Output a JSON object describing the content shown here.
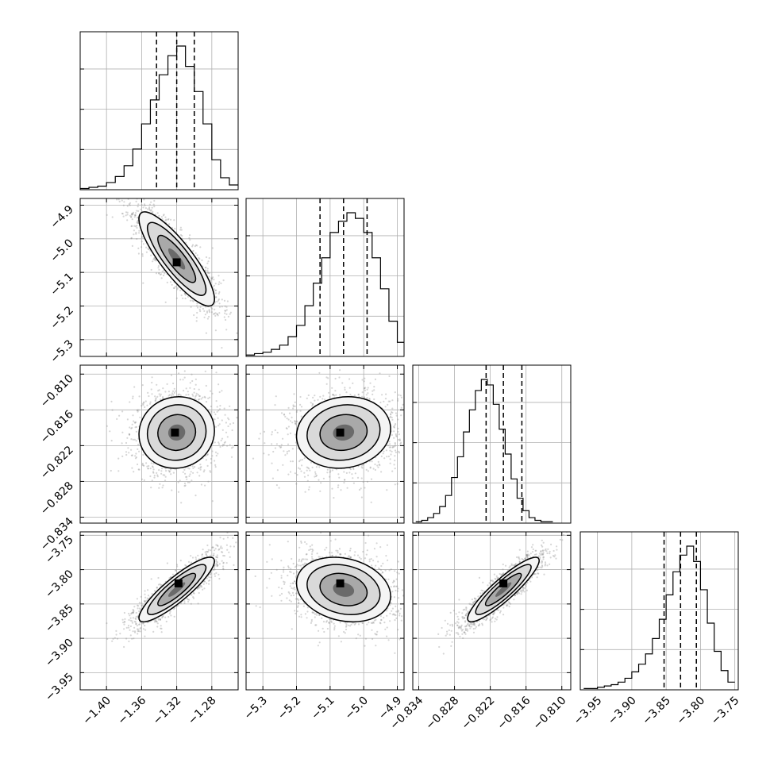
{
  "chart_data": {
    "type": "corner",
    "grid": true,
    "parameters": [
      {
        "range": [
          -1.43,
          -1.25
        ],
        "ticks": [
          -1.4,
          -1.36,
          -1.32,
          -1.28
        ],
        "tick_labels": [
          "−1.40",
          "−1.36",
          "−1.32",
          "−1.28"
        ],
        "quantiles": [
          -1.343,
          -1.32,
          -1.3
        ],
        "hist_bins": [
          -1.43,
          -1.42,
          -1.41,
          -1.4,
          -1.39,
          -1.38,
          -1.37,
          -1.36,
          -1.35,
          -1.34,
          -1.33,
          -1.32,
          -1.31,
          -1.3,
          -1.29,
          -1.28,
          -1.27,
          -1.26,
          -1.25
        ],
        "hist_counts": [
          1,
          2,
          3,
          6,
          11,
          20,
          34,
          55,
          75,
          96,
          112,
          120,
          103,
          82,
          55,
          25,
          10,
          4
        ]
      },
      {
        "range": [
          -5.35,
          -4.88
        ],
        "ticks": [
          -5.3,
          -5.2,
          -5.1,
          -5.0,
          -4.9
        ],
        "tick_labels": [
          "−5.3",
          "−5.2",
          "−5.1",
          "−5.0",
          "−4.9"
        ],
        "quantiles": [
          -5.13,
          -5.06,
          -4.99
        ],
        "hist_bins": [
          -5.35,
          -5.325,
          -5.3,
          -5.275,
          -5.25,
          -5.225,
          -5.2,
          -5.175,
          -5.15,
          -5.125,
          -5.1,
          -5.075,
          -5.05,
          -5.025,
          -5.0,
          -4.975,
          -4.95,
          -4.925,
          -4.9,
          -4.88
        ],
        "hist_counts": [
          1,
          2,
          3,
          5,
          8,
          14,
          22,
          36,
          52,
          70,
          88,
          96,
          102,
          98,
          88,
          70,
          48,
          25,
          10
        ]
      },
      {
        "range": [
          -0.835,
          -0.8085
        ],
        "ticks": [
          -0.834,
          -0.828,
          -0.822,
          -0.816,
          -0.81
        ],
        "tick_labels": [
          "−0.834",
          "−0.828",
          "−0.822",
          "−0.816",
          "−0.810"
        ],
        "quantiles": [
          -0.8227,
          -0.8198,
          -0.8167
        ],
        "hist_bins": [
          -0.8345,
          -0.8335,
          -0.8325,
          -0.8315,
          -0.8305,
          -0.8295,
          -0.8285,
          -0.8275,
          -0.8265,
          -0.8255,
          -0.8245,
          -0.8235,
          -0.8225,
          -0.8215,
          -0.8205,
          -0.8195,
          -0.8185,
          -0.8175,
          -0.8165,
          -0.8155,
          -0.8145,
          -0.8135,
          -0.8125,
          -0.8115
        ],
        "hist_counts": [
          1,
          2,
          4,
          7,
          12,
          20,
          33,
          48,
          66,
          82,
          96,
          104,
          100,
          86,
          68,
          50,
          32,
          18,
          9,
          4,
          2,
          1,
          1
        ]
      },
      {
        "range": [
          -3.975,
          -3.745
        ],
        "ticks": [
          -3.95,
          -3.9,
          -3.85,
          -3.8,
          -3.75
        ],
        "tick_labels": [
          "−3.95",
          "−3.90",
          "−3.85",
          "−3.80",
          "−3.75"
        ],
        "quantiles": [
          -3.853,
          -3.829,
          -3.806
        ],
        "hist_bins": [
          -3.97,
          -3.96,
          -3.95,
          -3.94,
          -3.93,
          -3.92,
          -3.91,
          -3.9,
          -3.89,
          -3.88,
          -3.87,
          -3.86,
          -3.85,
          -3.84,
          -3.83,
          -3.82,
          -3.81,
          -3.8,
          -3.79,
          -3.78,
          -3.77,
          -3.76,
          -3.75
        ],
        "hist_counts": [
          1,
          1,
          2,
          3,
          4,
          6,
          9,
          14,
          20,
          28,
          40,
          55,
          74,
          92,
          105,
          112,
          100,
          78,
          52,
          30,
          15,
          6
        ]
      }
    ],
    "correlations": {
      "1-0": -0.85,
      "2-0": 0.05,
      "2-1": 0.1,
      "3-0": 0.88,
      "3-1": -0.2,
      "3-2": 0.9
    },
    "density_peaks": {
      "1-0": [
        -1.32,
        -5.07
      ],
      "2-0": [
        -1.322,
        -0.8198
      ],
      "2-1": [
        -5.07,
        -0.8198
      ],
      "3-0": [
        -1.318,
        -3.82
      ],
      "3-1": [
        -5.07,
        -3.82
      ],
      "3-2": [
        -0.8198,
        -3.82
      ]
    },
    "contour_levels": [
      0.39,
      0.86,
      0.99,
      1.35
    ]
  }
}
